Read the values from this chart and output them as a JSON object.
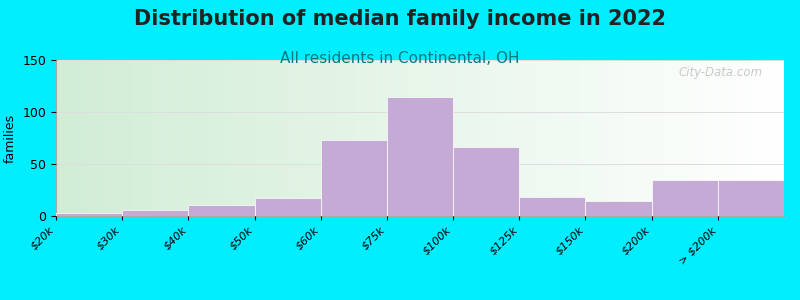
{
  "title": "Distribution of median family income in 2022",
  "subtitle": "All residents in Continental, OH",
  "ylabel": "families",
  "tick_labels": [
    "$20k",
    "$30k",
    "$40k",
    "$50k",
    "$60k",
    "$75k",
    "$100k",
    "$125k",
    "$150k",
    "$200k",
    "> $200k"
  ],
  "values": [
    3,
    6,
    11,
    17,
    73,
    114,
    66,
    18,
    14,
    35,
    35
  ],
  "bar_color": "#c4aad4",
  "ylim": [
    0,
    150
  ],
  "yticks": [
    0,
    50,
    100,
    150
  ],
  "background_outer": "#00eeff",
  "title_fontsize": 15,
  "subtitle_fontsize": 11,
  "subtitle_color": "#007b7b",
  "title_color": "#222222",
  "watermark_text": "City-Data.com",
  "grid_color": "#dddddd",
  "tick_label_fontsize": 8
}
